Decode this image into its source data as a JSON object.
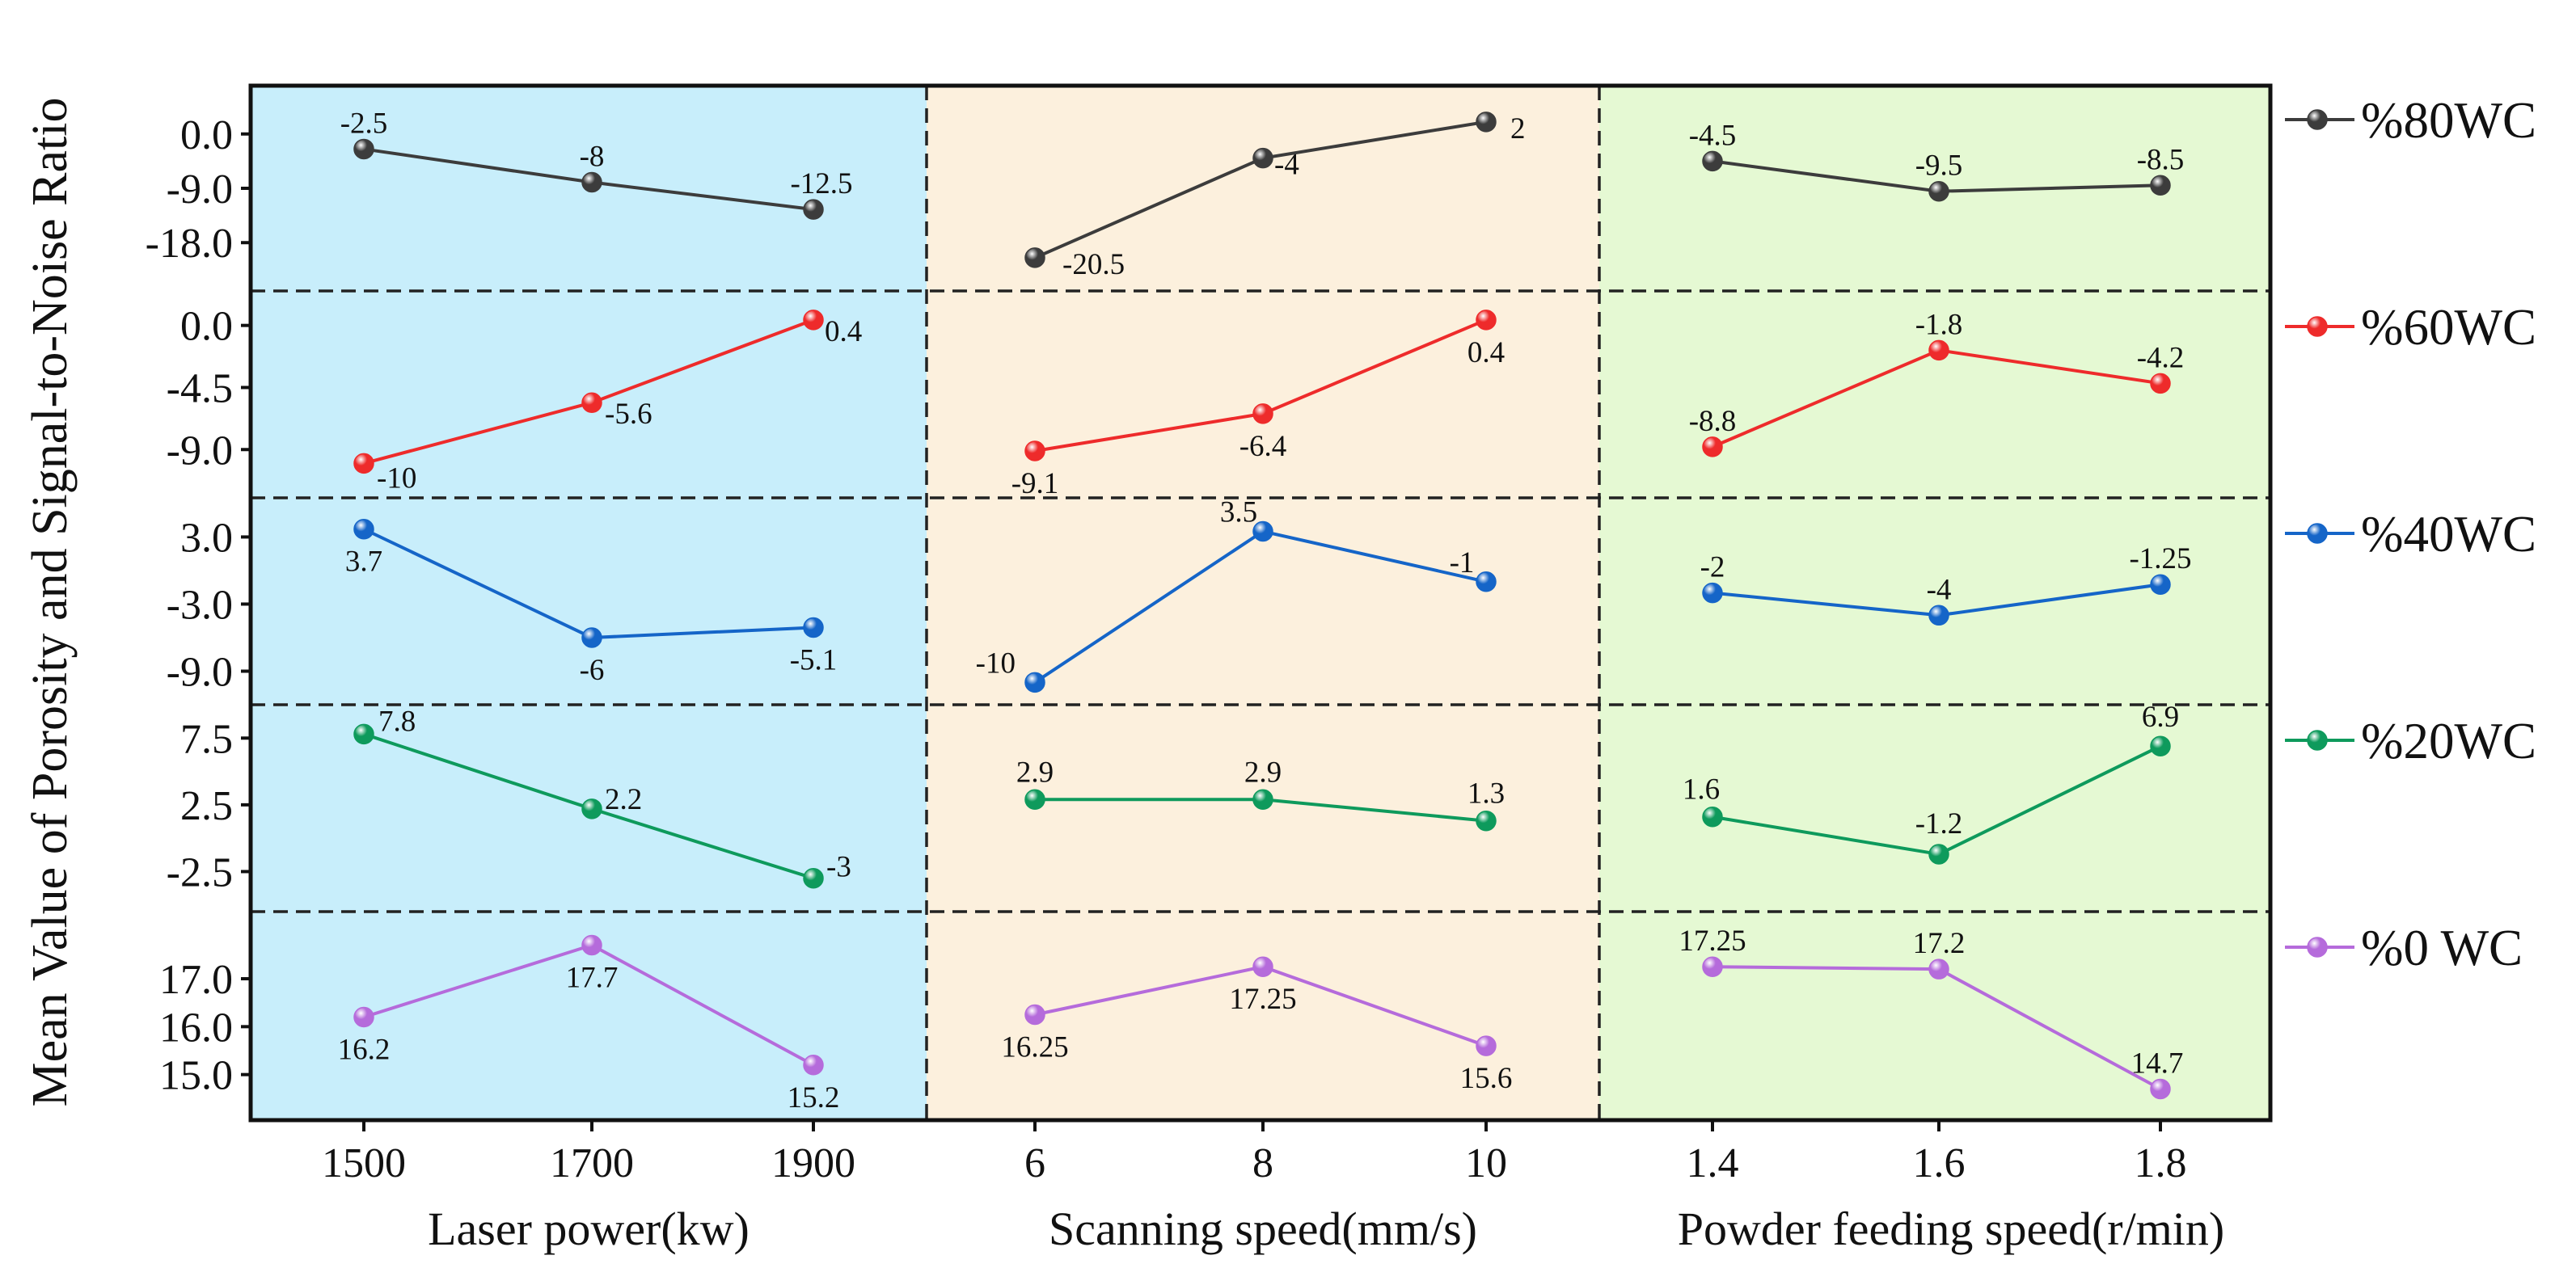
{
  "chart_data": {
    "type": "line",
    "ylabel": "Mean Value of Porosity and Signal-to-Noise Ratio",
    "colors": {
      "panel_bg": [
        "#c8eefb",
        "#fcf0dd",
        "#e5f9d3"
      ],
      "dashed": "#222222",
      "frame": "#111111"
    },
    "factors": [
      {
        "name": "Laser power(kw)",
        "x_ticks": [
          "1500",
          "1700",
          "1900"
        ]
      },
      {
        "name": "Scanning speed(mm/s)",
        "x_ticks": [
          "6",
          "8",
          "10"
        ]
      },
      {
        "name": "Powder feeding speed(r/min)",
        "x_ticks": [
          "1.4",
          "1.6",
          "1.8"
        ]
      }
    ],
    "series": [
      {
        "name": "%80WC",
        "color": "#3c3c3c",
        "ylim": [
          -26,
          8
        ],
        "y_ticks": [
          {
            "v": 0,
            "label": "0.0"
          },
          {
            "v": -9,
            "label": "-9.0"
          },
          {
            "v": -18,
            "label": "-18.0"
          }
        ],
        "groups": [
          {
            "values": [
              -2.5,
              -8,
              -12.5
            ],
            "labels": [
              "-2.5",
              "-8",
              "-12.5"
            ]
          },
          {
            "values": [
              -20.5,
              -4,
              2
            ],
            "labels": [
              "-20.5",
              "-4",
              "2"
            ]
          },
          {
            "values": [
              -4.5,
              -9.5,
              -8.5
            ],
            "labels": [
              "-4.5",
              "-9.5",
              "-8.5"
            ]
          }
        ]
      },
      {
        "name": "%60WC",
        "color": "#ee2b2b",
        "ylim": [
          -12.5,
          2.5
        ],
        "y_ticks": [
          {
            "v": 0,
            "label": "0.0"
          },
          {
            "v": -4.5,
            "label": "-4.5"
          },
          {
            "v": -9,
            "label": "-9.0"
          }
        ],
        "groups": [
          {
            "values": [
              -10,
              -5.6,
              0.4
            ],
            "labels": [
              "-10",
              "-5.6",
              "0.4"
            ]
          },
          {
            "values": [
              -9.1,
              -6.4,
              0.4
            ],
            "labels": [
              "-9.1",
              "-6.4",
              "0.4"
            ]
          },
          {
            "values": [
              -8.8,
              -1.8,
              -4.2
            ],
            "labels": [
              "-8.8",
              "-1.8",
              "-4.2"
            ]
          }
        ]
      },
      {
        "name": "%40WC",
        "color": "#1565c8",
        "ylim": [
          -12,
          6.5
        ],
        "y_ticks": [
          {
            "v": 3,
            "label": "3.0"
          },
          {
            "v": -3,
            "label": "-3.0"
          },
          {
            "v": -9,
            "label": "-9.0"
          }
        ],
        "groups": [
          {
            "values": [
              3.7,
              -6,
              -5.1
            ],
            "labels": [
              "3.7",
              "-6",
              "-5.1"
            ]
          },
          {
            "values": [
              -10,
              3.5,
              -1
            ],
            "labels": [
              "-10",
              "3.5",
              "-1"
            ]
          },
          {
            "values": [
              -2,
              -4,
              -1.25
            ],
            "labels": [
              "-2",
              "-4",
              "-1.25"
            ]
          }
        ]
      },
      {
        "name": "%20WC",
        "color": "#0e9a5c",
        "ylim": [
          -5.5,
          10
        ],
        "y_ticks": [
          {
            "v": 7.5,
            "label": "7.5"
          },
          {
            "v": 2.5,
            "label": "2.5"
          },
          {
            "v": -2.5,
            "label": "-2.5"
          }
        ],
        "groups": [
          {
            "values": [
              7.8,
              2.2,
              -3
            ],
            "labels": [
              "7.8",
              "2.2",
              "-3"
            ]
          },
          {
            "values": [
              2.9,
              2.9,
              1.3
            ],
            "labels": [
              "2.9",
              "2.9",
              "1.3"
            ]
          },
          {
            "values": [
              1.6,
              -1.2,
              6.9
            ],
            "labels": [
              "1.6",
              "-1.2",
              "6.9"
            ]
          }
        ]
      },
      {
        "name": "%0  WC",
        "color": "#b56bdb",
        "ylim": [
          14.05,
          18.4
        ],
        "y_ticks": [
          {
            "v": 17,
            "label": "17.0"
          },
          {
            "v": 16,
            "label": "16.0"
          },
          {
            "v": 15,
            "label": "15.0"
          }
        ],
        "groups": [
          {
            "values": [
              16.2,
              17.7,
              15.2
            ],
            "labels": [
              "16.2",
              "17.7",
              "15.2"
            ]
          },
          {
            "values": [
              16.25,
              17.25,
              15.6
            ],
            "labels": [
              "16.25",
              "17.25",
              "15.6"
            ]
          },
          {
            "values": [
              17.25,
              17.2,
              14.7
            ],
            "labels": [
              "17.25",
              "17.2",
              "14.7"
            ]
          }
        ]
      }
    ]
  }
}
